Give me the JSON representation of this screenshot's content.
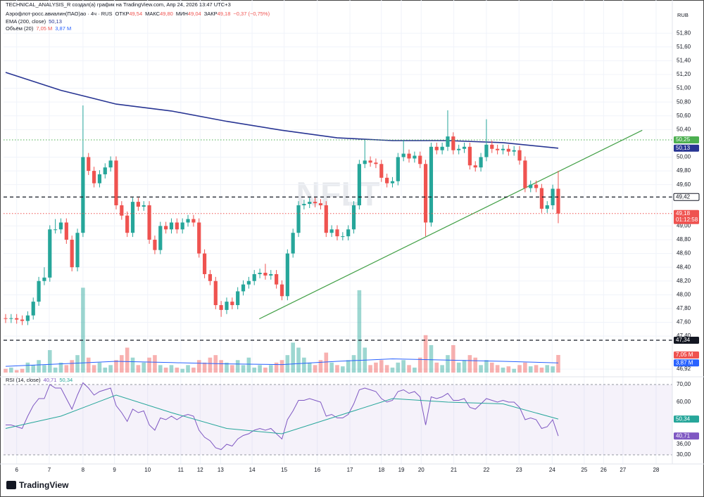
{
  "header": {
    "credit": "TECHNICAL_ANALYSIS_R создал(а) график на TradingView.com, Апр 24, 2026 13:47 UTC+3",
    "currency": "RUB",
    "symbol": "Аэрофлот-росс.авиалин(ПАО)ао · 4ч · RUS",
    "open_label": "ОТКР",
    "open": "49,54",
    "high_label": "МАКС",
    "high": "49,80",
    "low_label": "МИН",
    "low": "49,04",
    "close_label": "ЗАКР",
    "close": "49,18",
    "change": "−0,37 (−0,75%)"
  },
  "chart_data": [
    {
      "type": "candlestick",
      "watermark": "NFLT",
      "up_color": "#26a69a",
      "down_color": "#ef5350",
      "grid": true,
      "xlim": [
        -0.38,
        120.64
      ],
      "ylim": [
        46.87,
        52.18
      ],
      "xticks": [
        {
          "value": 2,
          "label": "6"
        },
        {
          "value": 7.9,
          "label": "7"
        },
        {
          "value": 14,
          "label": "8"
        },
        {
          "value": 19.7,
          "label": "9"
        },
        {
          "value": 25.7,
          "label": "10"
        },
        {
          "value": 31.7,
          "label": "11"
        },
        {
          "value": 35.2,
          "label": "12"
        },
        {
          "value": 38.9,
          "label": "13"
        },
        {
          "value": 44.6,
          "label": "14"
        },
        {
          "value": 50.4,
          "label": "15"
        },
        {
          "value": 56.4,
          "label": "16"
        },
        {
          "value": 62.3,
          "label": "17"
        },
        {
          "value": 68,
          "label": "18"
        },
        {
          "value": 71.6,
          "label": "19"
        },
        {
          "value": 75.2,
          "label": "20"
        },
        {
          "value": 81.1,
          "label": "21"
        },
        {
          "value": 87,
          "label": "22"
        },
        {
          "value": 92.9,
          "label": "23"
        },
        {
          "value": 98.9,
          "label": "24"
        },
        {
          "value": 104.7,
          "label": "25"
        },
        {
          "value": 108.2,
          "label": "26"
        },
        {
          "value": 111.7,
          "label": "27"
        },
        {
          "value": 117.7,
          "label": "28"
        }
      ],
      "yticks": [
        {
          "value": 51.8,
          "label": "51,80"
        },
        {
          "value": 51.6,
          "label": "51,60"
        },
        {
          "value": 51.4,
          "label": "51,40"
        },
        {
          "value": 51.2,
          "label": "51,20"
        },
        {
          "value": 51.0,
          "label": "51,00"
        },
        {
          "value": 50.8,
          "label": "50,80"
        },
        {
          "value": 50.6,
          "label": "50,60"
        },
        {
          "value": 50.4,
          "label": "50,40"
        },
        {
          "value": 50.0,
          "label": "50,00"
        },
        {
          "value": 49.8,
          "label": "49,80"
        },
        {
          "value": 49.6,
          "label": "49,60"
        },
        {
          "value": 49.0,
          "label": "49,00"
        },
        {
          "value": 48.8,
          "label": "48,80"
        },
        {
          "value": 48.6,
          "label": "48,60"
        },
        {
          "value": 48.4,
          "label": "48,40"
        },
        {
          "value": 48.2,
          "label": "48,20"
        },
        {
          "value": 48.0,
          "label": "48,00"
        },
        {
          "value": 47.8,
          "label": "47,80"
        },
        {
          "value": 47.6,
          "label": "47,60"
        },
        {
          "value": 47.4,
          "label": "47,40"
        },
        {
          "value": 46.92,
          "label": "46,92"
        }
      ],
      "open": [
        47.66,
        47.65,
        47.66,
        47.64,
        47.62,
        47.7,
        47.9,
        48.2,
        48.25,
        48.95,
        48.95,
        49.05,
        48.8,
        48.4,
        48.9,
        50.0,
        49.8,
        49.62,
        49.75,
        49.85,
        49.95,
        49.3,
        49.15,
        48.9,
        49.35,
        49.28,
        49.3,
        48.8,
        48.65,
        49.0,
        48.95,
        49.05,
        48.95,
        49.05,
        49.1,
        49.05,
        48.6,
        48.3,
        48.2,
        47.85,
        47.78,
        47.9,
        47.85,
        48.05,
        48.15,
        48.2,
        48.3,
        48.32,
        48.28,
        48.3,
        48.15,
        47.98,
        48.6,
        48.9,
        49.3,
        49.32,
        49.35,
        49.33,
        49.3,
        48.9,
        48.95,
        48.85,
        48.85,
        48.95,
        49.3,
        49.9,
        49.95,
        49.92,
        49.9,
        49.7,
        49.62,
        49.65,
        50.0,
        50.05,
        49.98,
        50.02,
        49.9,
        49.05,
        50.15,
        50.1,
        50.15,
        50.3,
        50.1,
        50.12,
        50.15,
        49.88,
        49.85,
        50.0,
        50.18,
        50.12,
        50.1,
        50.12,
        50.08,
        50.1,
        49.95,
        49.55,
        49.6,
        49.55,
        49.25,
        49.3,
        49.54
      ],
      "high": [
        47.72,
        47.72,
        47.72,
        47.7,
        47.76,
        47.96,
        48.26,
        48.4,
        49.01,
        49.1,
        49.11,
        49.11,
        48.86,
        48.96,
        50.75,
        50.06,
        49.86,
        49.81,
        49.91,
        50.01,
        50.01,
        49.36,
        49.21,
        49.41,
        49.41,
        49.36,
        49.36,
        48.86,
        49.06,
        49.06,
        49.11,
        49.11,
        49.11,
        49.16,
        49.16,
        49.11,
        48.66,
        48.36,
        48.26,
        47.91,
        47.96,
        47.96,
        48.11,
        48.21,
        48.26,
        48.36,
        48.38,
        48.45,
        48.36,
        48.36,
        48.21,
        48.66,
        48.96,
        49.36,
        49.38,
        49.41,
        49.41,
        49.39,
        49.36,
        49.01,
        49.01,
        48.91,
        49.01,
        49.36,
        49.96,
        50.25,
        50.01,
        49.98,
        49.96,
        49.76,
        49.71,
        50.06,
        50.25,
        50.11,
        50.08,
        50.08,
        49.96,
        50.21,
        50.21,
        50.21,
        50.68,
        50.36,
        50.18,
        50.21,
        50.21,
        49.94,
        50.06,
        50.55,
        50.24,
        50.18,
        50.18,
        50.18,
        50.16,
        50.16,
        50.01,
        49.66,
        49.66,
        49.61,
        49.36,
        49.6,
        49.8
      ],
      "low": [
        47.59,
        47.59,
        47.58,
        47.56,
        47.56,
        47.64,
        47.84,
        48.14,
        48.19,
        48.89,
        48.89,
        48.74,
        48.34,
        48.34,
        48.84,
        49.74,
        49.56,
        49.56,
        49.69,
        49.79,
        49.24,
        49.09,
        48.84,
        48.84,
        49.22,
        49.22,
        48.74,
        48.59,
        48.59,
        48.89,
        48.89,
        48.89,
        48.89,
        48.99,
        48.99,
        48.54,
        48.24,
        48.14,
        47.79,
        47.68,
        47.72,
        47.79,
        47.79,
        47.99,
        48.09,
        48.14,
        48.24,
        48.22,
        48.22,
        48.09,
        47.92,
        47.92,
        48.54,
        48.84,
        49.24,
        49.26,
        49.27,
        49.24,
        48.84,
        48.84,
        48.79,
        48.79,
        48.79,
        48.89,
        49.24,
        49.84,
        49.86,
        49.84,
        49.64,
        49.56,
        49.56,
        49.59,
        49.94,
        49.92,
        49.92,
        49.84,
        48.85,
        48.99,
        50.04,
        50.04,
        50.09,
        50.04,
        50.04,
        50.06,
        49.82,
        49.79,
        49.79,
        49.94,
        50.06,
        50.04,
        50.04,
        50.02,
        50.02,
        49.89,
        49.49,
        49.49,
        49.49,
        49.19,
        49.19,
        49.24,
        49.04
      ],
      "close": [
        47.65,
        47.66,
        47.64,
        47.62,
        47.7,
        47.9,
        48.2,
        48.25,
        48.95,
        48.95,
        49.05,
        48.8,
        48.4,
        48.9,
        50.0,
        49.8,
        49.62,
        49.75,
        49.85,
        49.95,
        49.3,
        49.15,
        48.9,
        49.35,
        49.28,
        49.3,
        48.8,
        48.65,
        49.0,
        48.95,
        49.05,
        48.95,
        49.05,
        49.1,
        49.05,
        48.6,
        48.3,
        48.2,
        47.85,
        47.78,
        47.9,
        47.85,
        48.05,
        48.15,
        48.2,
        48.3,
        48.32,
        48.28,
        48.3,
        48.15,
        47.98,
        48.6,
        48.9,
        49.3,
        49.32,
        49.35,
        49.33,
        49.3,
        48.9,
        48.95,
        48.85,
        48.85,
        48.95,
        49.3,
        49.9,
        49.95,
        49.92,
        49.9,
        49.7,
        49.62,
        49.65,
        50.0,
        50.05,
        49.98,
        50.02,
        49.9,
        49.05,
        50.15,
        50.1,
        50.15,
        50.3,
        50.1,
        50.12,
        50.15,
        49.88,
        49.85,
        50.0,
        50.18,
        50.12,
        50.1,
        50.12,
        50.08,
        50.1,
        49.95,
        49.55,
        49.6,
        49.55,
        49.25,
        49.3,
        49.54,
        49.18
      ],
      "volume": {
        "name": "Объём (20)",
        "value_label": "7,05 M",
        "values": [
          1.5,
          2,
          1,
          1.5,
          4,
          3,
          5,
          3,
          9,
          2,
          4,
          3,
          5,
          7,
          34,
          6,
          3,
          4,
          2,
          3,
          5,
          7,
          10,
          6,
          3,
          4,
          6,
          7,
          3,
          2,
          3,
          2,
          1.5,
          3,
          2,
          5,
          4,
          6,
          7,
          5,
          4,
          3,
          5,
          3,
          6,
          2,
          3,
          2,
          3,
          4,
          5,
          7,
          12,
          10,
          6,
          4,
          3,
          5,
          8,
          4,
          3,
          2.5,
          5,
          7,
          33,
          10,
          3,
          4,
          5,
          3,
          2,
          4,
          5,
          3,
          2,
          6,
          15,
          11,
          4,
          3,
          7,
          11,
          4,
          5,
          7,
          6,
          3,
          5,
          4,
          3,
          2,
          2.5,
          1.5,
          3,
          4,
          2.5,
          3,
          2,
          3,
          2.5,
          7.05
        ],
        "ma": {
          "color": "#2962ff",
          "value_label": "3,87 M",
          "x": [
            0,
            10,
            20,
            30,
            40,
            50,
            60,
            70,
            80,
            90,
            100
          ],
          "values": [
            2.5,
            3.5,
            4.5,
            4.0,
            3.5,
            3.2,
            4.5,
            5.5,
            5.0,
            4.5,
            3.87
          ]
        }
      },
      "ema": {
        "name": "EMA (200, close)",
        "color": "#283593",
        "value_label": "50,13",
        "x": [
          0,
          10,
          20,
          30,
          40,
          50,
          60,
          70,
          80,
          90,
          100
        ],
        "values": [
          51.23,
          50.97,
          50.77,
          50.67,
          50.52,
          50.39,
          50.28,
          50.24,
          50.24,
          50.21,
          50.13
        ]
      },
      "trendline": {
        "color": "#43a047",
        "x": [
          45.9,
          115.2
        ],
        "values": [
          47.65,
          50.39
        ]
      },
      "markers": [
        {
          "value": 50.25,
          "label": "50,25",
          "color": "#4caf50",
          "style": "dotted"
        },
        {
          "value": 50.13,
          "label": "50,13",
          "color": "#283593"
        },
        {
          "value": 49.42,
          "label": "49,42",
          "color": "#131722",
          "style": "dashed",
          "tag": "outline"
        },
        {
          "value": 49.18,
          "label": "49,18",
          "sublabel": "01:12:58",
          "color": "#ef5350",
          "style": "dotted"
        },
        {
          "value": 47.34,
          "label": "47,34",
          "color": "#131722",
          "style": "dashed"
        }
      ]
    },
    {
      "type": "rsi",
      "title": "RSI (14, close)",
      "ylim": [
        28,
        72
      ],
      "band": [
        30,
        70
      ],
      "band_color": "#7e57c2",
      "yticks": [
        {
          "value": 70,
          "label": "70,00"
        },
        {
          "value": 60,
          "label": "60,00"
        },
        {
          "value": 36,
          "label": "36,00"
        },
        {
          "value": 30,
          "label": "30,00"
        }
      ],
      "series": [
        {
          "color": "#7e57c2",
          "value_label": "40,71",
          "values": [
            47,
            47,
            46,
            45,
            52,
            58,
            62,
            62,
            70,
            68,
            68,
            62,
            56,
            64,
            71,
            68,
            64,
            66,
            67,
            68,
            58,
            54,
            49,
            56,
            54,
            55,
            47,
            44,
            51,
            50,
            52,
            50,
            52,
            53,
            52,
            44,
            40,
            38,
            34,
            33,
            36,
            35,
            39,
            41,
            42,
            44,
            45,
            44,
            45,
            42,
            39,
            50,
            55,
            61,
            61,
            62,
            61,
            60,
            52,
            53,
            51,
            51,
            53,
            59,
            67,
            68,
            67,
            66,
            62,
            60,
            61,
            66,
            67,
            65,
            66,
            63,
            47,
            63,
            62,
            63,
            65,
            61,
            61,
            62,
            57,
            56,
            59,
            62,
            61,
            60,
            61,
            60,
            60,
            57,
            50,
            51,
            50,
            45,
            46,
            50,
            40.71
          ]
        },
        {
          "color": "#26a69a",
          "value_label": "50,34",
          "x": [
            0,
            10,
            20,
            30,
            40,
            50,
            60,
            70,
            80,
            90,
            100
          ],
          "values": [
            45,
            52,
            64,
            54,
            45,
            42,
            52,
            62,
            60,
            59,
            50.34
          ]
        }
      ]
    }
  ],
  "footer": {
    "logo": "TradingView"
  }
}
